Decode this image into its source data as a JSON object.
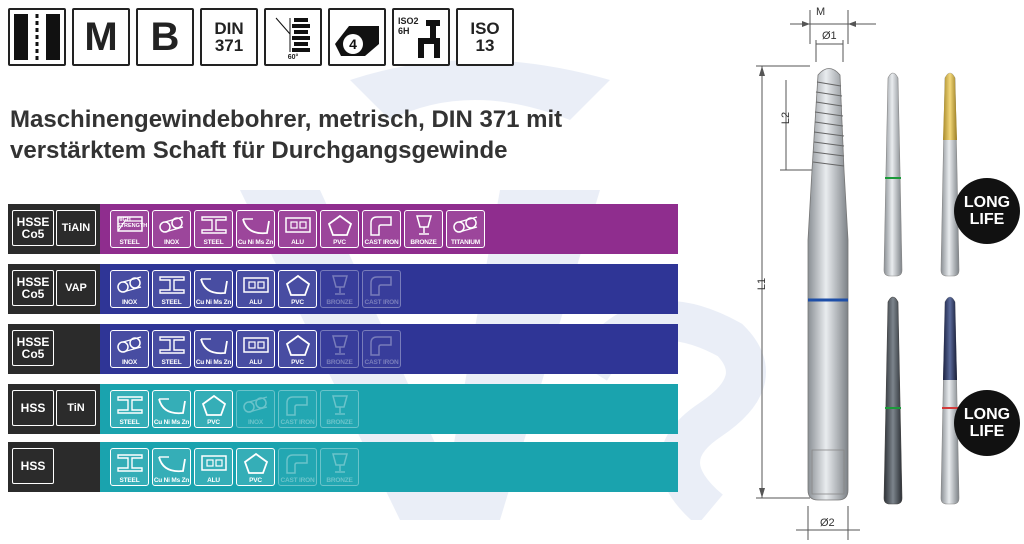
{
  "icons": {
    "m": "M",
    "b": "B",
    "din": "DIN\n371",
    "angle": "60°",
    "step": "4",
    "tolerance": "ISO2\n6H",
    "iso": "ISO\n13"
  },
  "title": "Maschinengewindebohrer, metrisch, DIN 371 mit verstärktem Schaft für Durchgangsgewinde",
  "rows": [
    {
      "material": "HSSE\nCo5",
      "coating": "TiAlN",
      "color": "#8f2d8e",
      "tiles": [
        {
          "label": "STEEL",
          "sub": "HIGH STRENGTH",
          "icon": "steel-strength",
          "active": true
        },
        {
          "label": "INOX",
          "icon": "tubes",
          "active": true
        },
        {
          "label": "STEEL",
          "icon": "beam",
          "active": true
        },
        {
          "label": "Cu Ni Ms Zn",
          "icon": "gutter",
          "active": true
        },
        {
          "label": "ALU",
          "icon": "profile",
          "active": true
        },
        {
          "label": "PVC",
          "icon": "pentagon",
          "active": true
        },
        {
          "label": "CAST IRON",
          "icon": "pipe-bend",
          "active": true
        },
        {
          "label": "BRONZE",
          "icon": "cup",
          "active": true
        },
        {
          "label": "TITANIUM",
          "icon": "tubes",
          "active": true
        }
      ]
    },
    {
      "material": "HSSE\nCo5",
      "coating": "VAP",
      "color": "#2f3596",
      "tiles": [
        {
          "label": "INOX",
          "icon": "tubes",
          "active": true
        },
        {
          "label": "STEEL",
          "icon": "beam",
          "active": true
        },
        {
          "label": "Cu Ni Ms Zn",
          "icon": "gutter",
          "active": true
        },
        {
          "label": "ALU",
          "icon": "profile",
          "active": true
        },
        {
          "label": "PVC",
          "icon": "pentagon",
          "active": true
        },
        {
          "label": "BRONZE",
          "icon": "cup",
          "active": false
        },
        {
          "label": "CAST IRON",
          "icon": "pipe-bend",
          "active": false
        }
      ]
    },
    {
      "material": "HSSE\nCo5",
      "coating": "",
      "color": "#2f3596",
      "tiles": [
        {
          "label": "INOX",
          "icon": "tubes",
          "active": true
        },
        {
          "label": "STEEL",
          "icon": "beam",
          "active": true
        },
        {
          "label": "Cu Ni Ms Zn",
          "icon": "gutter",
          "active": true
        },
        {
          "label": "ALU",
          "icon": "profile",
          "active": true
        },
        {
          "label": "PVC",
          "icon": "pentagon",
          "active": true
        },
        {
          "label": "BRONZE",
          "icon": "cup",
          "active": false
        },
        {
          "label": "CAST IRON",
          "icon": "pipe-bend",
          "active": false
        }
      ]
    },
    {
      "material": "HSS",
      "coating": "TiN",
      "color": "#1aa3ae",
      "tiles": [
        {
          "label": "STEEL",
          "icon": "beam",
          "active": true
        },
        {
          "label": "Cu Ni Ms Zn",
          "icon": "gutter",
          "active": true
        },
        {
          "label": "PVC",
          "icon": "pentagon",
          "active": true
        },
        {
          "label": "INOX",
          "icon": "tubes",
          "active": false
        },
        {
          "label": "CAST IRON",
          "icon": "pipe-bend",
          "active": false
        },
        {
          "label": "BRONZE",
          "icon": "cup",
          "active": false
        }
      ]
    },
    {
      "material": "HSS",
      "coating": "",
      "color": "#1aa3ae",
      "tiles": [
        {
          "label": "STEEL",
          "icon": "beam",
          "active": true
        },
        {
          "label": "Cu Ni Ms Zn",
          "icon": "gutter",
          "active": true
        },
        {
          "label": "ALU",
          "icon": "profile",
          "active": true
        },
        {
          "label": "PVC",
          "icon": "pentagon",
          "active": true
        },
        {
          "label": "CAST IRON",
          "icon": "pipe-bend",
          "active": false
        },
        {
          "label": "BRONZE",
          "icon": "cup",
          "active": false
        }
      ]
    }
  ],
  "drawing": {
    "dims": {
      "m": "M",
      "d1": "Ø1",
      "l2": "L2",
      "l1": "L1",
      "d2": "Ø2"
    },
    "badges": [
      "LONG\nLIFE",
      "LONG\nLIFE"
    ],
    "ring_colors": [
      "#1e4fa8",
      "#1b9a3a",
      "#d23a3a"
    ]
  }
}
